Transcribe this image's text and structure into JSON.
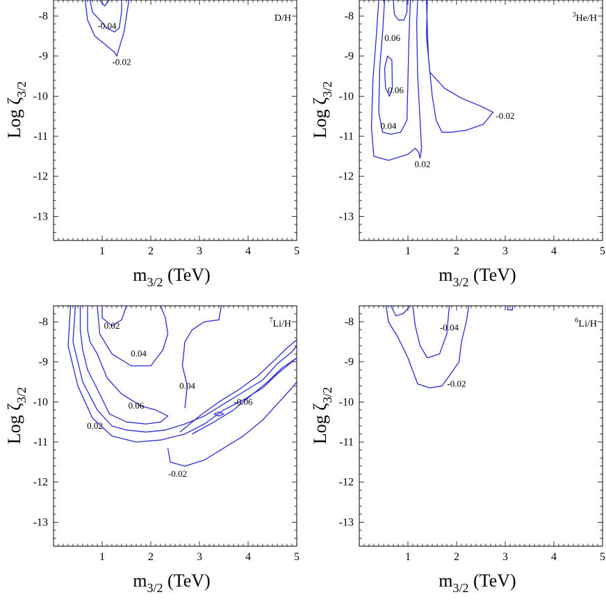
{
  "chart_data": [
    {
      "type": "contour",
      "panel_label": "D/H",
      "xlabel": {
        "main": "m",
        "sub": "3/2",
        "unit": " (TeV)"
      },
      "ylabel": {
        "main": "Log ζ",
        "sub": "3/2"
      },
      "xlim": [
        0,
        5
      ],
      "ylim": [
        -13.6,
        -7.6
      ],
      "xticks": [
        1,
        2,
        3,
        4,
        5
      ],
      "yticks": [
        -8,
        -9,
        -10,
        -11,
        -12,
        -13
      ],
      "contours": [
        {
          "level": "-0.04",
          "points": [
            [
              0.75,
              -7.6
            ],
            [
              0.8,
              -7.9
            ],
            [
              0.95,
              -8.1
            ],
            [
              1.1,
              -8.3
            ],
            [
              1.25,
              -8.4
            ],
            [
              1.35,
              -8.3
            ],
            [
              1.4,
              -7.9
            ],
            [
              1.4,
              -7.6
            ]
          ]
        },
        {
          "level": "-0.02",
          "points": [
            [
              0.65,
              -7.6
            ],
            [
              0.7,
              -8.1
            ],
            [
              0.85,
              -8.5
            ],
            [
              1.1,
              -8.75
            ],
            [
              1.25,
              -8.9
            ],
            [
              1.3,
              -9.0
            ],
            [
              1.45,
              -8.4
            ],
            [
              1.55,
              -7.6
            ]
          ]
        },
        {
          "level": "",
          "points": [
            [
              0.95,
              -7.6
            ],
            [
              1.05,
              -7.75
            ],
            [
              1.15,
              -7.6
            ]
          ]
        }
      ],
      "labels": [
        {
          "text": "-0.04",
          "x": 1.1,
          "y": -8.25
        },
        {
          "text": "-0.02",
          "x": 1.4,
          "y": -9.15
        }
      ]
    },
    {
      "type": "contour",
      "panel_label_sup": "3",
      "panel_label": "He/H",
      "xlabel": {
        "main": "m",
        "sub": "3/2",
        "unit": " (TeV)"
      },
      "ylabel": {
        "main": "Log ζ",
        "sub": "3/2"
      },
      "xlim": [
        0,
        5
      ],
      "ylim": [
        -13.6,
        -7.6
      ],
      "xticks": [
        1,
        2,
        3,
        4,
        5
      ],
      "yticks": [
        -8,
        -9,
        -10,
        -11,
        -12,
        -13
      ],
      "contours": [
        {
          "level": "0.06",
          "points": [
            [
              0.7,
              -7.6
            ],
            [
              0.72,
              -7.95
            ],
            [
              0.8,
              -8.1
            ],
            [
              0.92,
              -8.1
            ],
            [
              0.98,
              -7.9
            ],
            [
              0.98,
              -7.6
            ]
          ]
        },
        {
          "level": "0.06",
          "points": [
            [
              0.52,
              -9.3
            ],
            [
              0.58,
              -9.0
            ],
            [
              0.67,
              -9.1
            ],
            [
              0.68,
              -9.8
            ],
            [
              0.62,
              -10.0
            ],
            [
              0.54,
              -9.8
            ],
            [
              0.52,
              -9.3
            ]
          ]
        },
        {
          "level": "0.04",
          "points": [
            [
              0.52,
              -7.6
            ],
            [
              0.48,
              -8.4
            ],
            [
              0.42,
              -9.3
            ],
            [
              0.4,
              -10.4
            ],
            [
              0.48,
              -10.9
            ],
            [
              0.65,
              -10.95
            ],
            [
              0.85,
              -10.9
            ],
            [
              0.98,
              -10.6
            ],
            [
              1.0,
              -9.6
            ],
            [
              1.02,
              -8.6
            ],
            [
              1.05,
              -7.6
            ]
          ]
        },
        {
          "level": "0.02",
          "points": [
            [
              0.4,
              -7.6
            ],
            [
              0.35,
              -8.5
            ],
            [
              0.28,
              -9.6
            ],
            [
              0.25,
              -10.8
            ],
            [
              0.3,
              -11.5
            ],
            [
              0.6,
              -11.6
            ],
            [
              1.0,
              -11.45
            ],
            [
              1.15,
              -11.3
            ],
            [
              1.22,
              -11.4
            ],
            [
              1.25,
              -11.55
            ],
            [
              1.28,
              -11.3
            ],
            [
              1.2,
              -9.5
            ],
            [
              1.18,
              -8.2
            ],
            [
              1.2,
              -7.6
            ]
          ]
        },
        {
          "level": "-0.02",
          "points": [
            [
              1.4,
              -7.6
            ],
            [
              1.38,
              -8.5
            ],
            [
              1.45,
              -9.4
            ],
            [
              1.75,
              -9.8
            ],
            [
              2.1,
              -10.05
            ],
            [
              2.5,
              -10.25
            ],
            [
              2.75,
              -10.4
            ],
            [
              2.55,
              -10.7
            ],
            [
              2.2,
              -10.85
            ],
            [
              1.9,
              -10.9
            ],
            [
              1.7,
              -10.9
            ],
            [
              1.58,
              -10.6
            ],
            [
              1.5,
              -10.0
            ],
            [
              1.42,
              -9.0
            ],
            [
              1.38,
              -7.6
            ]
          ]
        }
      ],
      "labels": [
        {
          "text": "0.06",
          "x": 0.68,
          "y": -8.55
        },
        {
          "text": "0.06",
          "x": 0.75,
          "y": -9.85
        },
        {
          "text": "0.04",
          "x": 0.6,
          "y": -10.75
        },
        {
          "text": "0.02",
          "x": 1.3,
          "y": -11.7
        },
        {
          "text": "-0.02",
          "x": 3.0,
          "y": -10.5
        }
      ]
    },
    {
      "type": "contour",
      "panel_label_sup": "7",
      "panel_label": "Li/H",
      "xlabel": {
        "main": "m",
        "sub": "3/2",
        "unit": " (TeV)"
      },
      "ylabel": {
        "main": "Log ζ",
        "sub": "3/2"
      },
      "xlim": [
        0,
        5
      ],
      "ylim": [
        -13.6,
        -7.6
      ],
      "xticks": [
        1,
        2,
        3,
        4,
        5
      ],
      "yticks": [
        -8,
        -9,
        -10,
        -11,
        -12,
        -13
      ],
      "contours": [
        {
          "level": "0.02",
          "points": [
            [
              1.0,
              -7.6
            ],
            [
              1.0,
              -7.9
            ],
            [
              1.2,
              -8.1
            ],
            [
              1.4,
              -7.95
            ],
            [
              1.5,
              -7.6
            ]
          ]
        },
        {
          "level": "0.04",
          "points": [
            [
              0.9,
              -7.6
            ],
            [
              0.95,
              -8.3
            ],
            [
              1.2,
              -8.8
            ],
            [
              1.6,
              -9.1
            ],
            [
              2.0,
              -9.1
            ],
            [
              2.25,
              -8.7
            ],
            [
              2.35,
              -8.3
            ],
            [
              2.3,
              -7.9
            ],
            [
              2.2,
              -7.6
            ]
          ]
        },
        {
          "level": "0.06",
          "points": [
            [
              0.7,
              -7.6
            ],
            [
              0.7,
              -8.2
            ],
            [
              0.75,
              -8.5
            ],
            [
              0.9,
              -8.8
            ],
            [
              1.1,
              -9.4
            ],
            [
              1.4,
              -9.8
            ],
            [
              1.8,
              -10.1
            ],
            [
              2.1,
              -10.2
            ],
            [
              2.35,
              -10.35
            ],
            [
              2.2,
              -10.5
            ],
            [
              1.9,
              -10.55
            ],
            [
              1.5,
              -10.5
            ],
            [
              1.15,
              -10.3
            ],
            [
              0.95,
              -9.8
            ],
            [
              0.7,
              -9.2
            ],
            [
              0.6,
              -8.7
            ],
            [
              0.55,
              -8.2
            ],
            [
              0.55,
              -7.6
            ]
          ]
        },
        {
          "level": "0.02",
          "points": [
            [
              0.45,
              -7.6
            ],
            [
              0.4,
              -8.5
            ],
            [
              0.6,
              -9.5
            ],
            [
              0.9,
              -10.2
            ],
            [
              1.2,
              -10.6
            ],
            [
              1.5,
              -10.7
            ],
            [
              1.9,
              -10.75
            ],
            [
              2.3,
              -10.7
            ],
            [
              2.7,
              -10.55
            ],
            [
              3.1,
              -10.35
            ],
            [
              3.5,
              -10.05
            ],
            [
              3.9,
              -9.75
            ],
            [
              4.3,
              -9.45
            ],
            [
              4.6,
              -9.05
            ],
            [
              4.9,
              -8.75
            ],
            [
              5.0,
              -8.6
            ]
          ]
        },
        {
          "level": "0.04",
          "points": [
            [
              0.35,
              -7.6
            ],
            [
              0.3,
              -8.6
            ],
            [
              0.5,
              -9.6
            ],
            [
              0.8,
              -10.4
            ],
            [
              1.2,
              -10.85
            ],
            [
              1.7,
              -11.0
            ],
            [
              2.2,
              -10.95
            ],
            [
              2.7,
              -10.8
            ],
            [
              3.1,
              -10.55
            ],
            [
              3.5,
              -10.2
            ],
            [
              3.9,
              -9.95
            ],
            [
              4.3,
              -9.65
            ],
            [
              4.6,
              -9.3
            ],
            [
              5.0,
              -8.9
            ]
          ]
        },
        {
          "level": "0.04",
          "points": [
            [
              2.7,
              -10.15
            ],
            [
              2.75,
              -9.6
            ],
            [
              2.65,
              -9.1
            ],
            [
              2.7,
              -8.5
            ],
            [
              2.85,
              -8.2
            ],
            [
              3.1,
              -8.0
            ],
            [
              3.4,
              -7.95
            ],
            [
              3.45,
              -7.6
            ]
          ]
        },
        {
          "level": "-0.06",
          "points": [
            [
              2.85,
              -10.8
            ],
            [
              3.3,
              -10.5
            ],
            [
              3.7,
              -10.2
            ],
            [
              4.1,
              -9.8
            ],
            [
              4.4,
              -9.5
            ],
            [
              4.7,
              -9.15
            ],
            [
              5.0,
              -8.9
            ]
          ]
        },
        {
          "level": "-0.06",
          "points": [
            [
              2.6,
              -10.75
            ],
            [
              3.0,
              -10.35
            ],
            [
              3.4,
              -10.0
            ],
            [
              3.8,
              -9.7
            ],
            [
              4.2,
              -9.35
            ],
            [
              4.55,
              -8.95
            ],
            [
              4.8,
              -8.65
            ],
            [
              5.0,
              -8.45
            ]
          ]
        },
        {
          "level": "-0.02",
          "points": [
            [
              2.35,
              -11.15
            ],
            [
              2.4,
              -11.5
            ],
            [
              2.7,
              -11.6
            ],
            [
              3.1,
              -11.45
            ],
            [
              3.5,
              -11.15
            ],
            [
              3.9,
              -10.85
            ],
            [
              4.3,
              -10.45
            ],
            [
              4.6,
              -10.05
            ],
            [
              4.9,
              -9.65
            ],
            [
              5.0,
              -9.5
            ]
          ]
        },
        {
          "level": "",
          "points": [
            [
              3.3,
              -10.3
            ],
            [
              3.4,
              -10.25
            ],
            [
              3.5,
              -10.3
            ],
            [
              3.4,
              -10.35
            ],
            [
              3.3,
              -10.3
            ]
          ]
        }
      ],
      "labels": [
        {
          "text": "0.02",
          "x": 1.2,
          "y": -8.1
        },
        {
          "text": "0.04",
          "x": 1.75,
          "y": -8.8
        },
        {
          "text": "0.04",
          "x": 2.75,
          "y": -9.6
        },
        {
          "text": "0.06",
          "x": 1.7,
          "y": -10.1
        },
        {
          "text": "0.02",
          "x": 0.85,
          "y": -10.6
        },
        {
          "text": "-0.06",
          "x": 3.9,
          "y": -10.0
        },
        {
          "text": "-0.02",
          "x": 2.55,
          "y": -11.8
        }
      ]
    },
    {
      "type": "contour",
      "panel_label_sup": "6",
      "panel_label": "Li/H",
      "xlabel": {
        "main": "m",
        "sub": "3/2",
        "unit": " (TeV)"
      },
      "ylabel": {
        "main": "Log ζ",
        "sub": "3/2"
      },
      "xlim": [
        0,
        5
      ],
      "ylim": [
        -13.6,
        -7.6
      ],
      "xticks": [
        1,
        2,
        3,
        4,
        5
      ],
      "yticks": [
        -8,
        -9,
        -10,
        -11,
        -12,
        -13
      ],
      "contours": [
        {
          "level": "",
          "points": [
            [
              0.65,
              -7.6
            ],
            [
              0.75,
              -7.85
            ],
            [
              0.9,
              -7.8
            ],
            [
              1.05,
              -7.6
            ]
          ]
        },
        {
          "level": "-0.04",
          "points": [
            [
              1.1,
              -7.6
            ],
            [
              1.15,
              -8.1
            ],
            [
              1.25,
              -8.6
            ],
            [
              1.4,
              -8.9
            ],
            [
              1.65,
              -8.8
            ],
            [
              1.8,
              -8.3
            ],
            [
              1.85,
              -7.6
            ]
          ]
        },
        {
          "level": "-0.02",
          "points": [
            [
              0.55,
              -7.6
            ],
            [
              0.6,
              -8.0
            ],
            [
              0.8,
              -8.4
            ],
            [
              1.0,
              -8.9
            ],
            [
              1.2,
              -9.55
            ],
            [
              1.45,
              -9.65
            ],
            [
              1.7,
              -9.6
            ],
            [
              1.85,
              -9.35
            ],
            [
              2.05,
              -9.0
            ],
            [
              2.1,
              -8.5
            ],
            [
              2.2,
              -8.0
            ],
            [
              2.25,
              -7.6
            ]
          ]
        },
        {
          "level": "",
          "points": [
            [
              3.05,
              -7.6
            ],
            [
              3.05,
              -7.7
            ],
            [
              3.15,
              -7.7
            ],
            [
              3.15,
              -7.6
            ]
          ]
        }
      ],
      "labels": [
        {
          "text": "-0.04",
          "x": 1.85,
          "y": -8.15
        },
        {
          "text": "-0.02",
          "x": 2.0,
          "y": -9.55
        }
      ]
    }
  ]
}
